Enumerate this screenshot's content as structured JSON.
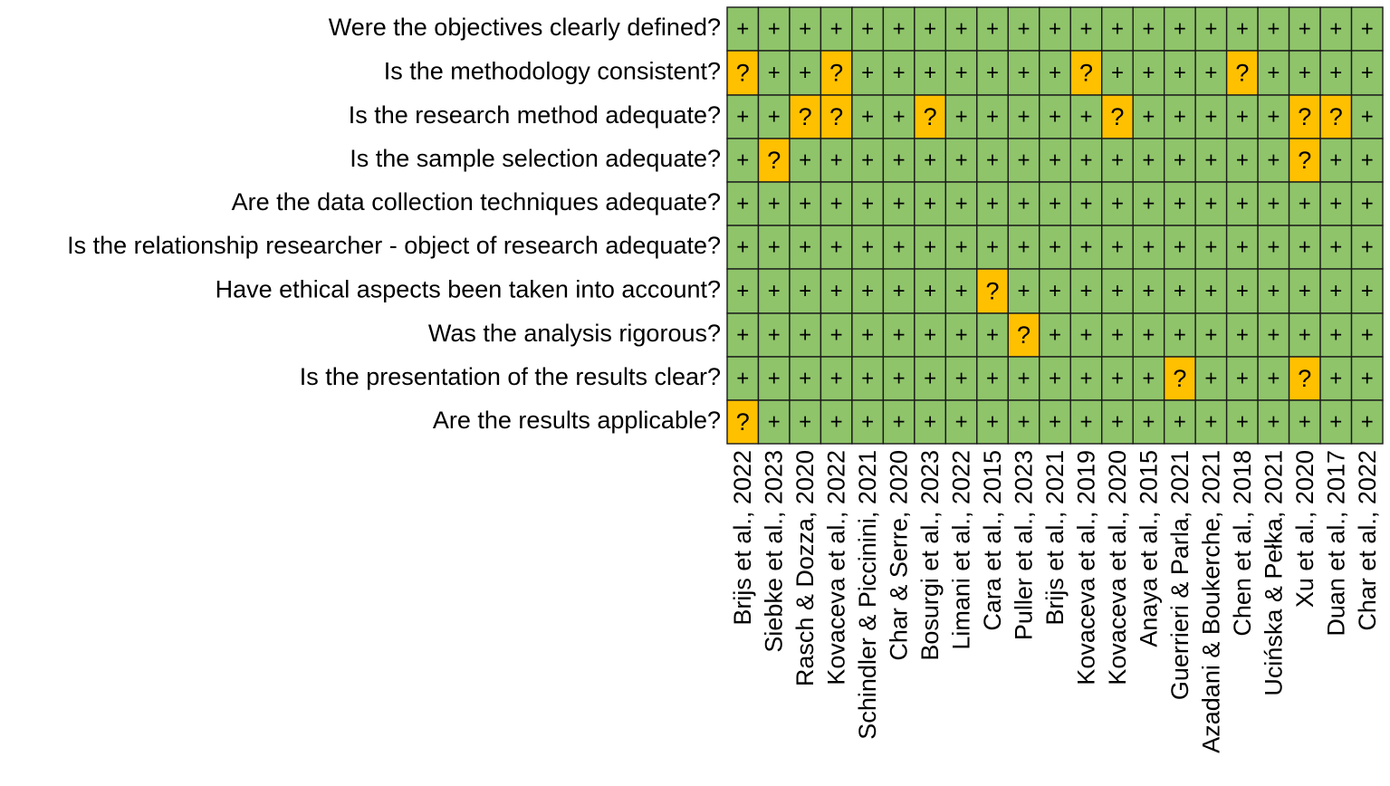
{
  "chart_data": {
    "type": "heatmap",
    "title": "",
    "rows": [
      "Were the objectives clearly defined?",
      "Is the methodology consistent?",
      "Is the research method adequate?",
      "Is the sample selection adequate?",
      "Are the data collection techniques adequate?",
      "Is the relationship researcher - object of research adequate?",
      "Have ethical aspects been taken into account?",
      "Was the analysis rigorous?",
      "Is the presentation of the results clear?",
      "Are the results applicable?"
    ],
    "columns": [
      "Brijs et al., 2022",
      "Siebke et al., 2023",
      "Rasch & Dozza, 2020",
      "Kovaceva et al., 2022",
      "Schindler & Piccinini, 2021",
      "Char & Serre, 2020",
      "Bosurgi et al., 2023",
      "Limani et al., 2022",
      "Cara et al., 2015",
      "Puller et al., 2023",
      "Brijs et al., 2021",
      "Kovaceva et al., 2019",
      "Kovaceva et al., 2020",
      "Anaya et al., 2015",
      "Guerrieri & Parla, 2021",
      "Azadani & Boukerche, 2021",
      "Chen et al., 2018",
      "Ucińska & Pełka, 2021",
      "Xu et al., 2020",
      "Duan et al., 2017",
      "Char et al., 2022"
    ],
    "values": [
      [
        "+",
        "+",
        "+",
        "+",
        "+",
        "+",
        "+",
        "+",
        "+",
        "+",
        "+",
        "+",
        "+",
        "+",
        "+",
        "+",
        "+",
        "+",
        "+",
        "+",
        "+"
      ],
      [
        "?",
        "+",
        "+",
        "?",
        "+",
        "+",
        "+",
        "+",
        "+",
        "+",
        "+",
        "?",
        "+",
        "+",
        "+",
        "+",
        "?",
        "+",
        "+",
        "+",
        "+"
      ],
      [
        "+",
        "+",
        "?",
        "?",
        "+",
        "+",
        "?",
        "+",
        "+",
        "+",
        "+",
        "+",
        "?",
        "+",
        "+",
        "+",
        "+",
        "+",
        "?",
        "?",
        "+"
      ],
      [
        "+",
        "?",
        "+",
        "+",
        "+",
        "+",
        "+",
        "+",
        "+",
        "+",
        "+",
        "+",
        "+",
        "+",
        "+",
        "+",
        "+",
        "+",
        "?",
        "+",
        "+"
      ],
      [
        "+",
        "+",
        "+",
        "+",
        "+",
        "+",
        "+",
        "+",
        "+",
        "+",
        "+",
        "+",
        "+",
        "+",
        "+",
        "+",
        "+",
        "+",
        "+",
        "+",
        "+"
      ],
      [
        "+",
        "+",
        "+",
        "+",
        "+",
        "+",
        "+",
        "+",
        "+",
        "+",
        "+",
        "+",
        "+",
        "+",
        "+",
        "+",
        "+",
        "+",
        "+",
        "+",
        "+"
      ],
      [
        "+",
        "+",
        "+",
        "+",
        "+",
        "+",
        "+",
        "+",
        "?",
        "+",
        "+",
        "+",
        "+",
        "+",
        "+",
        "+",
        "+",
        "+",
        "+",
        "+",
        "+"
      ],
      [
        "+",
        "+",
        "+",
        "+",
        "+",
        "+",
        "+",
        "+",
        "+",
        "?",
        "+",
        "+",
        "+",
        "+",
        "+",
        "+",
        "+",
        "+",
        "+",
        "+",
        "+"
      ],
      [
        "+",
        "+",
        "+",
        "+",
        "+",
        "+",
        "+",
        "+",
        "+",
        "+",
        "+",
        "+",
        "+",
        "+",
        "?",
        "+",
        "+",
        "+",
        "?",
        "+",
        "+"
      ],
      [
        "?",
        "+",
        "+",
        "+",
        "+",
        "+",
        "+",
        "+",
        "+",
        "+",
        "+",
        "+",
        "+",
        "+",
        "+",
        "+",
        "+",
        "+",
        "+",
        "+",
        "+"
      ]
    ],
    "colors": {
      "+": "#8fc46a",
      "?": "#ffc000",
      "border": "#1a1a1a"
    }
  }
}
